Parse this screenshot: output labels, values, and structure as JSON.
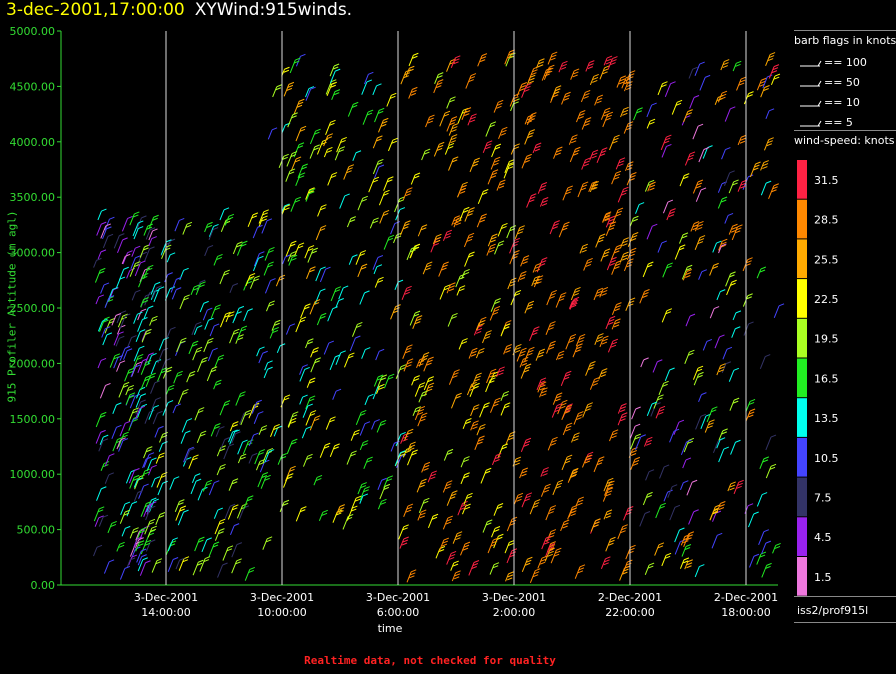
{
  "header": {
    "timestamp": "3-dec-2001,17:00:00",
    "name": "XYWind:915winds."
  },
  "footer_note": "Realtime data, not checked for quality",
  "station": "iss2/prof915l",
  "legend": {
    "barb_title": "barb flags in knots",
    "barb_items": [
      "== 100",
      "== 50",
      "== 10",
      "== 5"
    ],
    "speed_title": "wind-speed: knots",
    "speed_bins": [
      {
        "label": "31.5",
        "color": "#ff2244"
      },
      {
        "label": "28.5",
        "color": "#ff8800"
      },
      {
        "label": "25.5",
        "color": "#ffaa00"
      },
      {
        "label": "22.5",
        "color": "#ffff00"
      },
      {
        "label": "19.5",
        "color": "#aaff22"
      },
      {
        "label": "16.5",
        "color": "#22ee22"
      },
      {
        "label": "13.5",
        "color": "#00ffee"
      },
      {
        "label": "10.5",
        "color": "#4444ff"
      },
      {
        "label": "7.5",
        "color": "#333366"
      },
      {
        "label": "4.5",
        "color": "#9922ee"
      },
      {
        "label": "1.5",
        "color": "#ee77dd"
      }
    ]
  },
  "chart_data": {
    "type": "scatter",
    "title": "XYWind:915winds.",
    "ylabel": "915 Profiler Altitude (m agl)",
    "xlabel": "time",
    "ylim": [
      0,
      5000
    ],
    "y_ticks": [
      "0.00",
      "500.00",
      "1000.00",
      "1500.00",
      "2000.00",
      "2500.00",
      "3000.00",
      "3500.00",
      "4000.00",
      "4500.00",
      "5000.00"
    ],
    "x_axis_direction": "reversed (time decreases to the right)",
    "xlim_hours_before_end": [
      0,
      17
    ],
    "x_ticks": [
      {
        "date": "3-Dec-2001",
        "time": "14:00:00",
        "hour": 14
      },
      {
        "date": "3-Dec-2001",
        "time": "10:00:00",
        "hour": 10
      },
      {
        "date": "3-Dec-2001",
        "time": "6:00:00",
        "hour": 6
      },
      {
        "date": "3-Dec-2001",
        "time": "2:00:00",
        "hour": 2
      },
      {
        "date": "2-Dec-2001",
        "time": "22:00:00",
        "hour": -2
      },
      {
        "date": "2-Dec-2001",
        "time": "18:00:00",
        "hour": -6
      }
    ],
    "grid": "vertical lines at x ticks",
    "series": [
      {
        "name": "wind barbs (speed-colored)",
        "encoding": "barb direction + color = wind speed (knots)"
      }
    ],
    "regions": [
      {
        "x_hours": [
          16.5,
          14.5
        ],
        "y_range": [
          0,
          3300
        ],
        "speed_knots": [
          1.5,
          19.5
        ]
      },
      {
        "x_hours": [
          14.5,
          10.5
        ],
        "y_range": [
          0,
          3300
        ],
        "speed_knots": [
          7.5,
          22.5
        ]
      },
      {
        "x_hours": [
          10.5,
          6.0
        ],
        "y_range": [
          400,
          4750
        ],
        "speed_knots": [
          10.5,
          25.5
        ]
      },
      {
        "x_hours": [
          6.0,
          2.0
        ],
        "y_range": [
          0,
          4700
        ],
        "speed_knots": [
          19.5,
          31.5
        ]
      },
      {
        "x_hours": [
          2.0,
          -2.0
        ],
        "y_range": [
          0,
          4700
        ],
        "speed_knots": [
          25.5,
          31.5
        ]
      },
      {
        "x_hours": [
          -2.0,
          -7.0
        ],
        "y_range": [
          0,
          4700
        ],
        "speed_knots": [
          1.5,
          31.5
        ]
      }
    ]
  }
}
